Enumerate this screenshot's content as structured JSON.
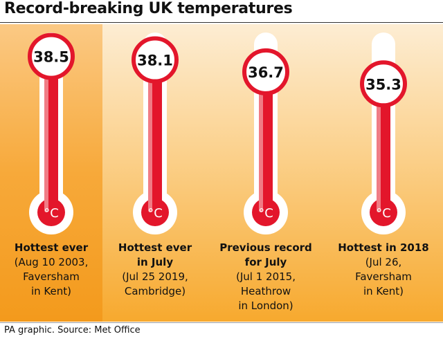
{
  "chart_data": {
    "type": "bar",
    "title": "Record-breaking UK temperatures",
    "unit": "°C",
    "ylim": [
      20,
      40
    ],
    "categories": [
      {
        "head": "Hottest ever",
        "detail": [
          "(Aug 10 2003,",
          "Faversham",
          "in Kent)"
        ]
      },
      {
        "head": "Hottest ever\nin July",
        "detail": [
          "(Jul 25 2019,",
          "Cambridge)"
        ]
      },
      {
        "head": "Previous record\nfor July",
        "detail": [
          "(Jul 1 2015,",
          "Heathrow",
          "in London)"
        ]
      },
      {
        "head": "Hottest in 2018",
        "detail": [
          "(Jul 26,",
          "Faversham",
          "in Kent)"
        ]
      }
    ],
    "values": [
      38.5,
      38.1,
      36.7,
      35.3
    ],
    "value_labels": [
      "38.5",
      "38.1",
      "36.7",
      "35.3"
    ]
  },
  "footer": "PA graphic. Source: Met Office",
  "colors": {
    "mercury": "#e3162b",
    "mercury_light": "#f07c85",
    "tube": "#ffffff",
    "ring": "#e3162b"
  }
}
